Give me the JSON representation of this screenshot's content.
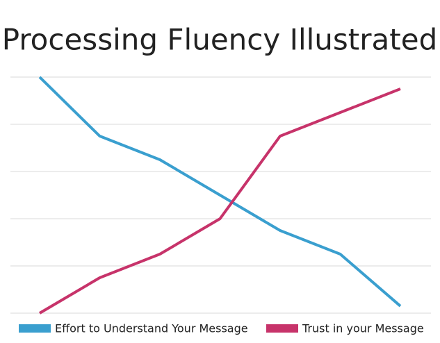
{
  "chart_data": {
    "type": "line",
    "title": "Processing Fluency Illustrated",
    "categories": [
      null,
      null,
      null,
      null,
      null,
      null,
      null
    ],
    "series": [
      {
        "name": "Effort to Understand Your Message",
        "color": "#3a9fcf",
        "values": [
          5,
          3.75,
          3.25,
          2.5,
          1.75,
          1.25,
          0.15
        ]
      },
      {
        "name": "Trust in your Message",
        "color": "#c7336a",
        "values": [
          0,
          0.75,
          1.25,
          2,
          3.75,
          4.25,
          4.75
        ]
      }
    ],
    "ylim": [
      0,
      5
    ],
    "yticks": [
      0,
      1,
      2,
      3,
      4,
      5
    ],
    "grid": true,
    "legend": "bottom"
  }
}
